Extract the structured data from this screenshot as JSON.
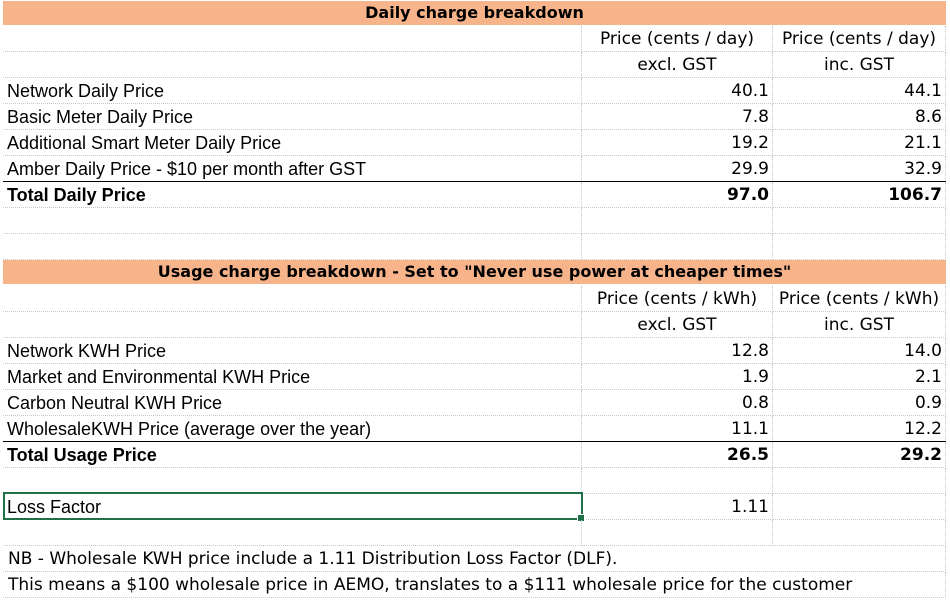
{
  "daily": {
    "title": "Daily charge breakdown",
    "col_header": {
      "excl_line1": "Price (cents / day)",
      "excl_line2": "excl. GST",
      "inc_line1": "Price (cents / day)",
      "inc_line2": "inc. GST"
    },
    "rows": [
      {
        "label": "Network Daily Price",
        "excl": "40.1",
        "inc": "44.1"
      },
      {
        "label": "Basic Meter Daily Price",
        "excl": "7.8",
        "inc": "8.6"
      },
      {
        "label": "Additional Smart Meter Daily Price",
        "excl": "19.2",
        "inc": "21.1"
      },
      {
        "label": "Amber Daily Price - $10 per month after GST",
        "excl": "29.9",
        "inc": "32.9"
      }
    ],
    "total": {
      "label": "Total Daily Price",
      "excl": "97.0",
      "inc": "106.7"
    }
  },
  "usage": {
    "title": "Usage charge breakdown - Set to \"Never use power at cheaper times\"",
    "col_header": {
      "excl_line1": "Price (cents / kWh)",
      "excl_line2": "excl. GST",
      "inc_line1": "Price (cents / kWh)",
      "inc_line2": "inc. GST"
    },
    "rows": [
      {
        "label": "Network KWH Price",
        "excl": "12.8",
        "inc": "14.0"
      },
      {
        "label": "Market and Environmental KWH Price",
        "excl": "1.9",
        "inc": "2.1"
      },
      {
        "label": "Carbon Neutral KWH Price",
        "excl": "0.8",
        "inc": "0.9"
      },
      {
        "label": "WholesaleKWH Price (average over the year)",
        "excl": "11.1",
        "inc": "12.2"
      }
    ],
    "total": {
      "label": "Total Usage Price",
      "excl": "26.5",
      "inc": "29.2"
    }
  },
  "loss_factor": {
    "label": "Loss Factor",
    "value": "1.11"
  },
  "notes": {
    "line1": "NB - Wholesale KWH price include a 1.11 Distribution Loss Factor (DLF).",
    "line2": "This means a $100 wholesale price in AEMO, translates to a $111 wholesale price for the customer"
  },
  "colors": {
    "header_band": "#f7b38a",
    "selection": "#1e7145"
  }
}
